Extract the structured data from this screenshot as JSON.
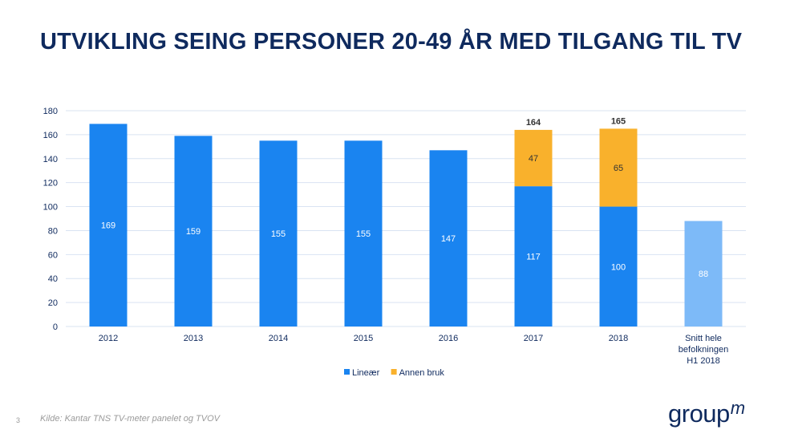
{
  "title": "UTVIKLING SEING PERSONER 20-49 ÅR MED TILGANG TIL TV",
  "footer": {
    "page_number": "3",
    "source": "Kilde: Kantar TNS TV-meter panelet og TVOV"
  },
  "logo": {
    "text": "group",
    "superscript": "m"
  },
  "colors": {
    "linear": "#1a84f0",
    "other": "#f9b12c",
    "average": "#7dbaf8",
    "grid": "#d9e3f2",
    "axis_text": "#0f2a5e"
  },
  "chart_data": {
    "type": "bar",
    "stacked": true,
    "categories": [
      "2012",
      "2013",
      "2014",
      "2015",
      "2016",
      "2017",
      "2018",
      "Snitt hele befolkningen H1 2018"
    ],
    "series": [
      {
        "name": "Lineær",
        "values": [
          169,
          159,
          155,
          155,
          147,
          117,
          100,
          88
        ]
      },
      {
        "name": "Annen bruk",
        "values": [
          null,
          null,
          null,
          null,
          null,
          47,
          65,
          null
        ]
      }
    ],
    "totals": [
      null,
      null,
      null,
      null,
      null,
      164,
      165,
      null
    ],
    "highlight_last_category": true,
    "ylim": [
      0,
      180
    ],
    "yticks": [
      0,
      20,
      40,
      60,
      80,
      100,
      120,
      140,
      160,
      180
    ],
    "grid": true,
    "legend": "bottom-center",
    "xlabel": "",
    "ylabel": ""
  }
}
